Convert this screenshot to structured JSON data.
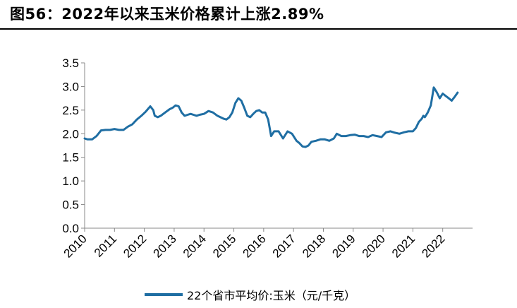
{
  "title": "图56：2022年以来玉米价格累计上涨2.89%",
  "colors": {
    "series": "#1f6ea3",
    "axis": "#888888"
  },
  "chart_data": {
    "type": "line",
    "title": "图56：2022年以来玉米价格累计上涨2.89%",
    "xlabel": "",
    "ylabel": "",
    "ylim": [
      0,
      3.5
    ],
    "yticks": [
      "0.0",
      "0.5",
      "1.0",
      "1.5",
      "2.0",
      "2.5",
      "3.0",
      "3.5"
    ],
    "xticks": [
      "2010",
      "2011",
      "2012",
      "2013",
      "2014",
      "2015",
      "2016",
      "2017",
      "2018",
      "2019",
      "2020",
      "2021",
      "2022"
    ],
    "xlim": [
      2010.0,
      2023.0
    ],
    "grid": false,
    "legend_position": "bottom",
    "series": [
      {
        "name": "22个省市平均价:玉米（元/千克）",
        "x": [
          2010.0,
          2010.1,
          2010.25,
          2010.4,
          2010.55,
          2010.7,
          2010.85,
          2011.0,
          2011.15,
          2011.3,
          2011.45,
          2011.6,
          2011.75,
          2011.9,
          2012.05,
          2012.2,
          2012.3,
          2012.35,
          2012.45,
          2012.55,
          2012.7,
          2012.85,
          2012.95,
          2013.05,
          2013.15,
          2013.25,
          2013.35,
          2013.45,
          2013.55,
          2013.65,
          2013.75,
          2013.85,
          2014.0,
          2014.15,
          2014.3,
          2014.45,
          2014.55,
          2014.65,
          2014.75,
          2014.85,
          2014.95,
          2015.05,
          2015.15,
          2015.25,
          2015.35,
          2015.45,
          2015.55,
          2015.65,
          2015.75,
          2015.85,
          2015.95,
          2016.05,
          2016.15,
          2016.25,
          2016.35,
          2016.5,
          2016.65,
          2016.8,
          2016.95,
          2017.1,
          2017.2,
          2017.3,
          2017.4,
          2017.5,
          2017.6,
          2017.75,
          2017.9,
          2018.05,
          2018.2,
          2018.35,
          2018.45,
          2018.6,
          2018.75,
          2018.9,
          2019.05,
          2019.2,
          2019.35,
          2019.5,
          2019.65,
          2019.8,
          2019.95,
          2020.1,
          2020.25,
          2020.4,
          2020.55,
          2020.7,
          2020.85,
          2021.0,
          2021.1,
          2021.2,
          2021.3,
          2021.35,
          2021.4,
          2021.5,
          2021.6,
          2021.7,
          2021.8,
          2021.9,
          2022.0,
          2022.1,
          2022.2,
          2022.3,
          2022.4,
          2022.5
        ],
        "values": [
          1.9,
          1.88,
          1.88,
          1.95,
          2.07,
          2.08,
          2.08,
          2.1,
          2.08,
          2.08,
          2.15,
          2.2,
          2.3,
          2.38,
          2.47,
          2.58,
          2.5,
          2.38,
          2.35,
          2.38,
          2.45,
          2.52,
          2.55,
          2.6,
          2.58,
          2.45,
          2.38,
          2.4,
          2.42,
          2.4,
          2.38,
          2.4,
          2.42,
          2.48,
          2.45,
          2.38,
          2.35,
          2.32,
          2.3,
          2.35,
          2.45,
          2.65,
          2.75,
          2.7,
          2.55,
          2.38,
          2.35,
          2.42,
          2.48,
          2.5,
          2.45,
          2.45,
          2.3,
          1.95,
          2.05,
          2.05,
          1.9,
          2.05,
          2.0,
          1.85,
          1.8,
          1.73,
          1.72,
          1.75,
          1.83,
          1.85,
          1.88,
          1.88,
          1.85,
          1.9,
          2.0,
          1.95,
          1.95,
          1.97,
          1.98,
          1.95,
          1.95,
          1.93,
          1.97,
          1.95,
          1.93,
          2.03,
          2.05,
          2.02,
          2.0,
          2.03,
          2.05,
          2.05,
          2.12,
          2.25,
          2.32,
          2.38,
          2.35,
          2.45,
          2.6,
          2.98,
          2.88,
          2.75,
          2.85,
          2.8,
          2.75,
          2.7,
          2.78,
          2.87
        ]
      }
    ]
  }
}
